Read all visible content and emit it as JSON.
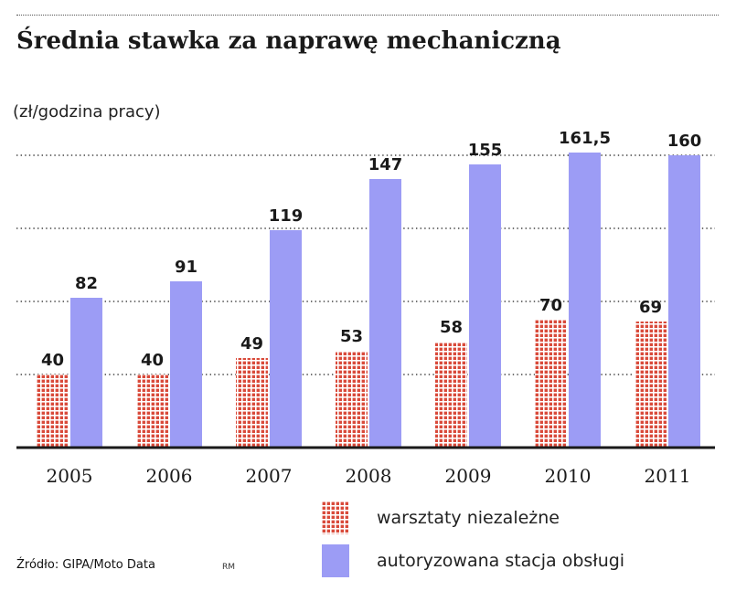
{
  "colors": {
    "independent": "#d94a3a",
    "authorized": "#9c9cf5",
    "grid": "#444444",
    "axis": "#1a1a1a"
  },
  "legend": {
    "independent_label": "warsztaty niezależne",
    "authorized_label": "autoryzowana stacja obsługi"
  },
  "source": "Źródło: GIPA/Moto Data",
  "author": "RM",
  "chart_data": {
    "type": "bar",
    "title": "Średnia stawka za naprawę mechaniczną",
    "ylabel": "(zł/godzina pracy)",
    "xlabel": "",
    "categories": [
      "2005",
      "2006",
      "2007",
      "2008",
      "2009",
      "2010",
      "2011"
    ],
    "series": [
      {
        "name": "warsztaty niezależne",
        "values": [
          40,
          40,
          49,
          53,
          58,
          70,
          69
        ],
        "labels": [
          "40",
          "40",
          "49",
          "53",
          "58",
          "70",
          "69"
        ]
      },
      {
        "name": "autoryzowana stacja obsługi",
        "values": [
          82,
          91,
          119,
          147,
          155,
          161.5,
          160
        ],
        "labels": [
          "82",
          "91",
          "119",
          "147",
          "155",
          "161,5",
          "160"
        ]
      }
    ],
    "ylim": [
      0,
      200
    ],
    "grid_values": [
      40,
      80,
      120,
      160
    ],
    "grid": true,
    "legend_position": "bottom"
  }
}
